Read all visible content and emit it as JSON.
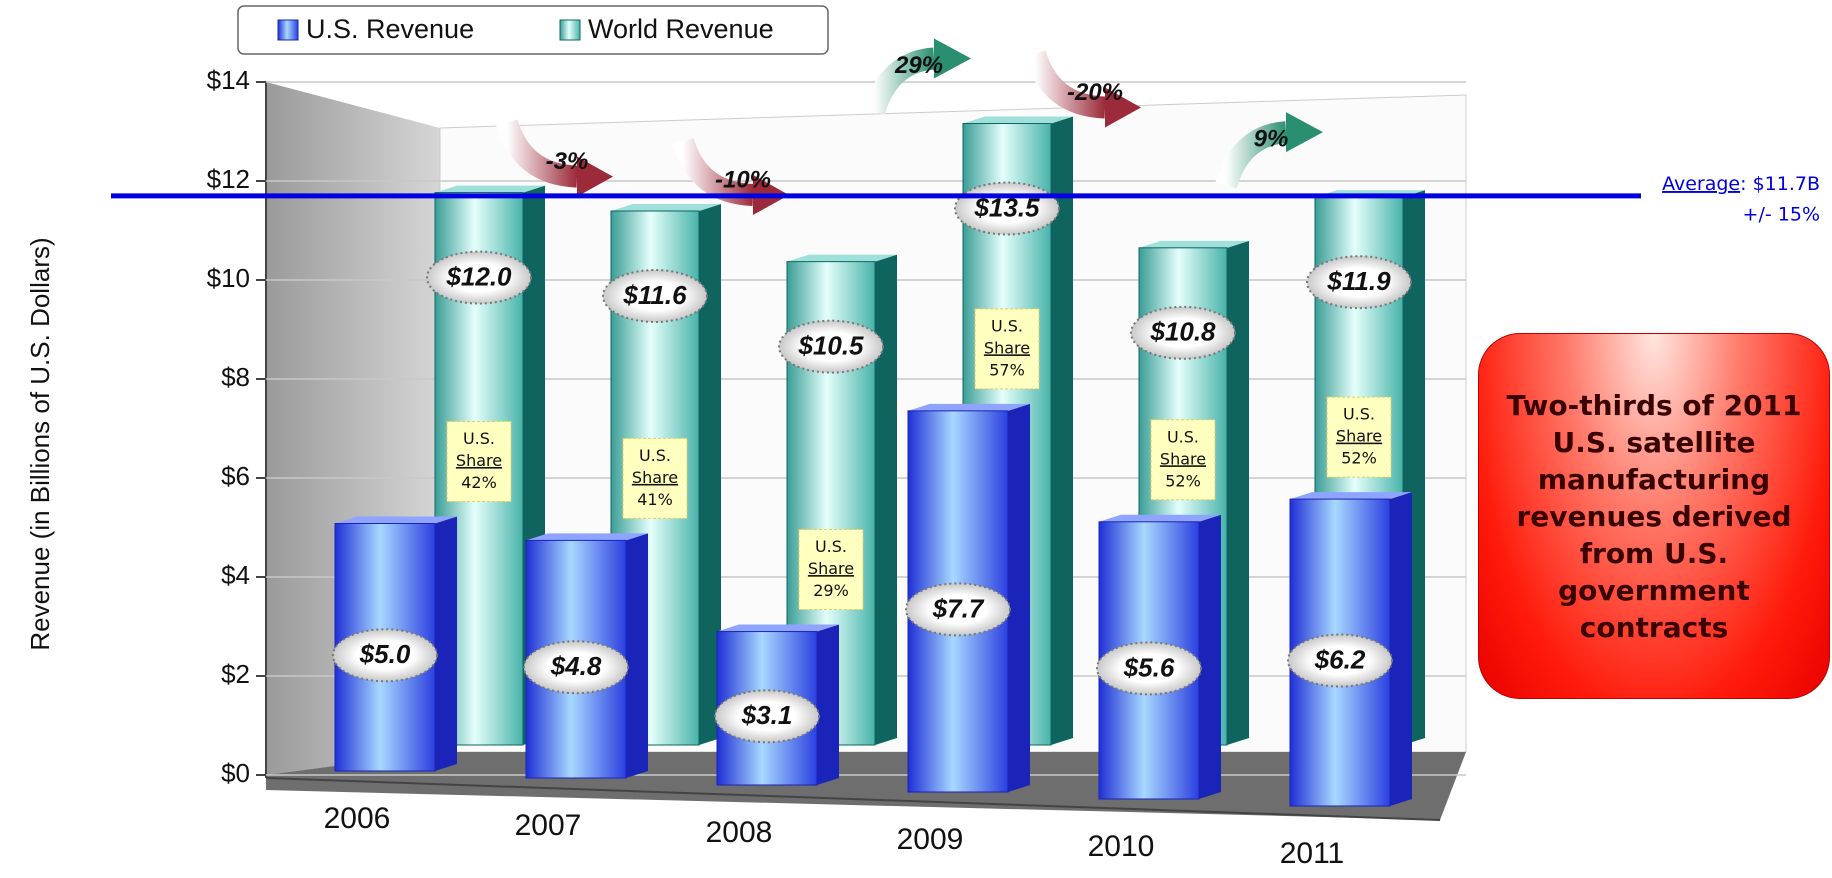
{
  "chart_data": {
    "type": "bar",
    "y_label": "Revenue (in Billions of U.S. Dollars)",
    "categories": [
      "2006",
      "2007",
      "2008",
      "2009",
      "2010",
      "2011"
    ],
    "series": [
      {
        "name": "U.S. Revenue",
        "color": "#1a24b8",
        "values": [
          5.0,
          4.8,
          3.1,
          7.7,
          5.6,
          6.2
        ],
        "value_labels": [
          "$5.0",
          "$4.8",
          "$3.1",
          "$7.7",
          "$5.6",
          "$6.2"
        ]
      },
      {
        "name": "World Revenue",
        "color": "#0f6460",
        "values": [
          12.0,
          11.6,
          10.5,
          13.5,
          10.8,
          11.9
        ],
        "value_labels": [
          "$12.0",
          "$11.6",
          "$10.5",
          "$13.5",
          "$10.8",
          "$11.9"
        ]
      }
    ],
    "ylim": [
      0,
      14
    ],
    "yticks": [
      {
        "value": 0,
        "label": "$0"
      },
      {
        "value": 2,
        "label": "$2"
      },
      {
        "value": 4,
        "label": "$4"
      },
      {
        "value": 6,
        "label": "$6"
      },
      {
        "value": 8,
        "label": "$8"
      },
      {
        "value": 10,
        "label": "$10"
      },
      {
        "value": 12,
        "label": "$12"
      },
      {
        "value": 14,
        "label": "$14"
      }
    ],
    "grid": true,
    "us_share": {
      "line1": "U.S.",
      "line2": "Share",
      "values": [
        42,
        41,
        29,
        57,
        52,
        52
      ],
      "value_labels": [
        "42%",
        "41%",
        "29%",
        "57%",
        "52%",
        "52%"
      ]
    },
    "growth": {
      "values": [
        -3,
        -10,
        29,
        -20,
        9
      ],
      "value_labels": [
        "-3%",
        "-10%",
        "29%",
        "-20%",
        "9%"
      ]
    },
    "average": {
      "label": "Average",
      "value": 11.7,
      "value_label": ": $11.7B",
      "range_label": "+/- 15%",
      "color": "#0000e0"
    },
    "callout": "Two-thirds of 2011 U.S. satellite manufacturing revenues derived from U.S. government contracts"
  }
}
